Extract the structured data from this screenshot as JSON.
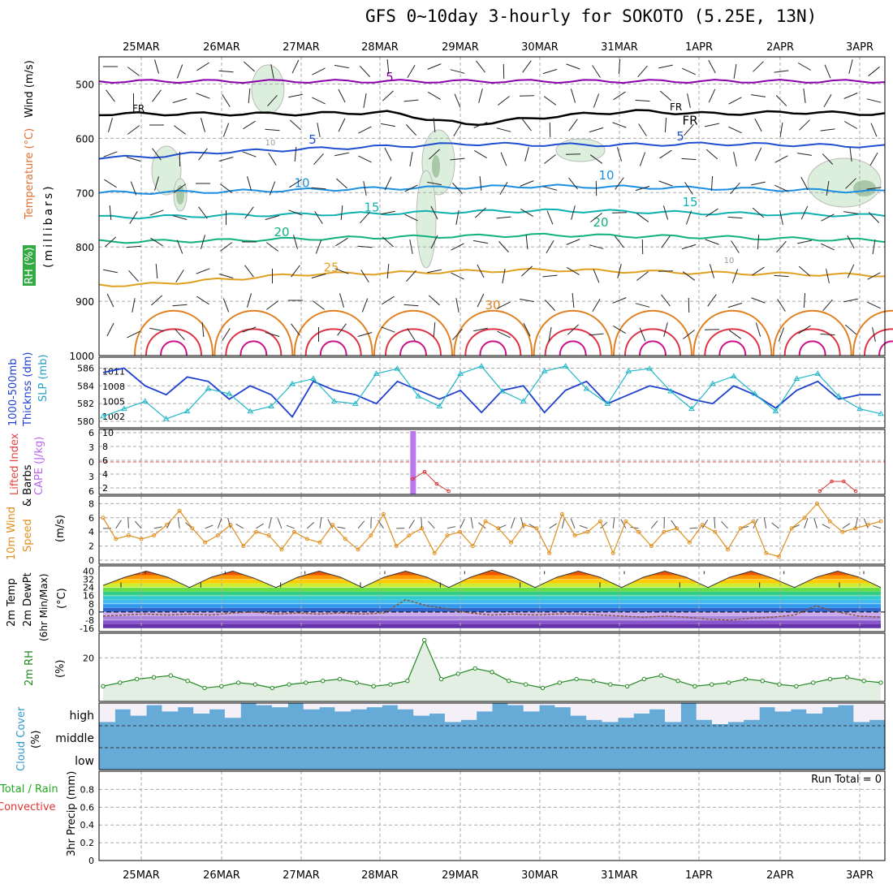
{
  "title": "GFS 0~10day 3-hourly for SOKOTO (5.25E, 13N)",
  "dates": [
    "25MAR",
    "26MAR",
    "27MAR",
    "28MAR",
    "29MAR",
    "30MAR",
    "31MAR",
    "1APR",
    "2APR",
    "3APR"
  ],
  "colors": {
    "grid": "#aaaaaa",
    "sounding_temp_5": "#2255cc",
    "freezing": "#000000"
  },
  "chart_data": [
    {
      "type": "contour",
      "panel": "upper-air",
      "ylabel_parts": [
        "Wind (m/s)",
        "Temperature (°C)",
        "RH (%)",
        "(millibars)"
      ],
      "yticks": [
        500,
        600,
        700,
        800,
        900,
        1000
      ],
      "ylim": [
        1000,
        450
      ],
      "contour_labels": [
        {
          "text": "5",
          "color": "#8800aa",
          "levels": [
            495,
            495,
            495,
            495,
            495,
            495,
            495,
            495,
            495,
            495
          ]
        },
        {
          "text": "FR",
          "color": "#000000",
          "levels": [
            555,
            555,
            555,
            552,
            575,
            560,
            550,
            555,
            552,
            555
          ]
        },
        {
          "text": "5",
          "color": "#1f4fd0",
          "levels": [
            635,
            625,
            620,
            615,
            610,
            612,
            612,
            610,
            612,
            615
          ]
        },
        {
          "text": "10",
          "color": "#1a8fe0",
          "levels": [
            700,
            698,
            695,
            692,
            690,
            688,
            690,
            692,
            695,
            698
          ]
        },
        {
          "text": "15",
          "color": "#10b0b0",
          "levels": [
            745,
            742,
            740,
            738,
            735,
            733,
            735,
            738,
            740,
            742
          ]
        },
        {
          "text": "20",
          "color": "#10b080",
          "levels": [
            790,
            788,
            785,
            782,
            780,
            778,
            780,
            782,
            785,
            788
          ]
        },
        {
          "text": "25",
          "color": "#e0a020",
          "levels": [
            870,
            860,
            850,
            848,
            845,
            842,
            845,
            848,
            850,
            852
          ]
        }
      ],
      "label_30": "30",
      "label_10rh": "10"
    },
    {
      "type": "line",
      "panel": "thickness-slp",
      "ylabel_left": "1000-500mb Thickness (dm)",
      "ylabel_right": "SLP (mb)",
      "yticks_left": [
        580,
        582,
        584,
        586
      ],
      "yticks_right": [
        1002,
        1005,
        1008,
        1011
      ],
      "series": [
        {
          "color": "#1f3fcf",
          "axis": "left",
          "values": [
            585.5,
            586.0,
            584.0,
            583.0,
            585.0,
            584.5,
            582.5,
            584.0,
            583.0,
            580.5,
            584.5,
            583.5,
            583.0,
            582.0,
            584.5,
            583.5,
            582.5,
            583.5,
            581.0,
            583.5,
            584.0,
            581.0,
            583.5,
            584.5,
            582.0,
            583.0,
            584.0,
            583.5,
            582.5,
            582.0,
            584.0,
            583.0,
            581.5,
            583.5,
            584.5,
            582.5,
            583.0,
            583.0
          ]
        },
        {
          "color": "#22b7c8",
          "axis": "right",
          "values": [
            1002.0,
            1003.5,
            1005.0,
            1001.5,
            1003.0,
            1007.5,
            1006.5,
            1003.0,
            1004.0,
            1008.5,
            1009.5,
            1005.0,
            1004.5,
            1010.5,
            1011.5,
            1006.0,
            1004.0,
            1010.5,
            1012.0,
            1007.0,
            1005.0,
            1011.0,
            1012.0,
            1007.5,
            1004.5,
            1011.0,
            1011.5,
            1007.0,
            1003.5,
            1008.5,
            1010.0,
            1006.5,
            1003.0,
            1009.5,
            1010.5,
            1006.0,
            1003.5,
            1002.5
          ]
        }
      ]
    },
    {
      "type": "bar",
      "panel": "cape-li",
      "ylabel_left": "Lifted Index",
      "ylabel_right": "CAPE (J/kg)",
      "yticks_left": [
        -6,
        -3,
        0,
        3,
        6
      ],
      "yticks_right": [
        2,
        4,
        6,
        8,
        10
      ],
      "cape_bar": {
        "day_index": 3.4,
        "value": 10
      },
      "li_line": {
        "color": "#dd3333",
        "values": [
          3.5,
          2.0,
          4.5,
          6.0
        ],
        "start_index": 3.4,
        "step": 0.1
      },
      "li_line2": {
        "color": "#dd3333",
        "values": [
          6.0,
          4.0,
          4.0,
          6.0
        ],
        "start_index": 8.5,
        "step": 0.1
      }
    },
    {
      "type": "line",
      "panel": "wind10m",
      "ylabel": "10m Wind Speed & Barbs (m/s)",
      "yticks": [
        0,
        2,
        4,
        6,
        8
      ],
      "series": [
        {
          "color": "#e09020",
          "values": [
            6.0,
            3.0,
            3.5,
            3.0,
            3.5,
            5.0,
            7.0,
            4.5,
            2.5,
            3.5,
            5.0,
            2.0,
            4.0,
            3.5,
            1.5,
            4.0,
            3.0,
            2.5,
            5.0,
            3.0,
            1.5,
            3.5,
            6.5,
            2.0,
            3.5,
            4.5,
            1.0,
            3.5,
            4.0,
            2.0,
            5.5,
            4.5,
            2.5,
            5.0,
            4.5,
            1.0,
            6.5,
            3.5,
            4.0,
            5.5,
            1.0,
            5.5,
            4.0,
            2.0,
            4.0,
            4.5,
            2.5,
            5.0,
            4.0,
            1.5,
            4.5,
            5.5,
            1.0,
            0.5,
            4.5,
            6.0,
            8.0,
            5.5,
            4.0,
            4.5,
            5.0,
            5.5
          ]
        }
      ]
    },
    {
      "type": "area",
      "panel": "temp2m",
      "ylabel": "2m Temp 2m DewPt (6hr Min/Max) (°C)",
      "yticks": [
        -16,
        -8,
        0,
        8,
        16,
        24,
        32,
        40
      ],
      "series": [
        {
          "name": "temp",
          "values": [
            26,
            34,
            40,
            34,
            24,
            34,
            40,
            33,
            24,
            34,
            40,
            34,
            24,
            34,
            40,
            34,
            24,
            34,
            41,
            34,
            24,
            34,
            40,
            34,
            24,
            34,
            40,
            34,
            24,
            34,
            40,
            33,
            24,
            34,
            40,
            34,
            24
          ]
        },
        {
          "name": "dewpt",
          "values": [
            -4,
            -3,
            -2,
            -3,
            -2,
            -3,
            -1,
            0,
            -2,
            -1,
            -2,
            -1,
            -2,
            -1,
            12,
            6,
            3,
            -1,
            -3,
            -2,
            -3,
            -2,
            -2,
            -3,
            -4,
            -5,
            -4,
            -5,
            -7,
            -8,
            -6,
            -5,
            -3,
            6,
            0,
            -4,
            -5
          ]
        }
      ]
    },
    {
      "type": "area",
      "panel": "rh2m",
      "ylabel": "2m RH (%)",
      "yticks": [
        20
      ],
      "series": [
        {
          "color": "#228822",
          "values": [
            4,
            6,
            8,
            9,
            10,
            7,
            3,
            4,
            6,
            5,
            3,
            5,
            6,
            7,
            8,
            6,
            4,
            5,
            7,
            30,
            8,
            11,
            14,
            12,
            7,
            5,
            3,
            6,
            8,
            7,
            5,
            4,
            8,
            10,
            7,
            4,
            5,
            6,
            8,
            7,
            5,
            4,
            6,
            8,
            9,
            7,
            6
          ]
        }
      ]
    },
    {
      "type": "bar",
      "panel": "cloud",
      "ylabel": "Cloud Cover (%)",
      "levels": [
        "high",
        "middle",
        "low"
      ],
      "high_cover": [
        0.9,
        0.3,
        0.6,
        0.1,
        0.4,
        0.2,
        0.5,
        0.3,
        0.7,
        0.0,
        0.1,
        0.2,
        0.0,
        0.3,
        0.2,
        0.4,
        0.3,
        0.2,
        0.1,
        0.3,
        0.6,
        0.5,
        0.9,
        0.8,
        0.4,
        0.0,
        0.1,
        0.4,
        0.1,
        0.2,
        0.6,
        0.8,
        0.9,
        0.7,
        0.5,
        0.3,
        0.9,
        0.0,
        0.8,
        1.0,
        0.9,
        0.8,
        0.2,
        0.4,
        0.3,
        0.5,
        0.2,
        0.1,
        0.9,
        0.8
      ]
    },
    {
      "type": "bar",
      "panel": "precip",
      "ylabel": "3hr Precip (mm)",
      "ylabel_side": [
        "Total / Rain",
        "Convective"
      ],
      "yticks": [
        0,
        0.2,
        0.4,
        0.6,
        0.8
      ],
      "run_total": "Run Total = 0"
    }
  ]
}
